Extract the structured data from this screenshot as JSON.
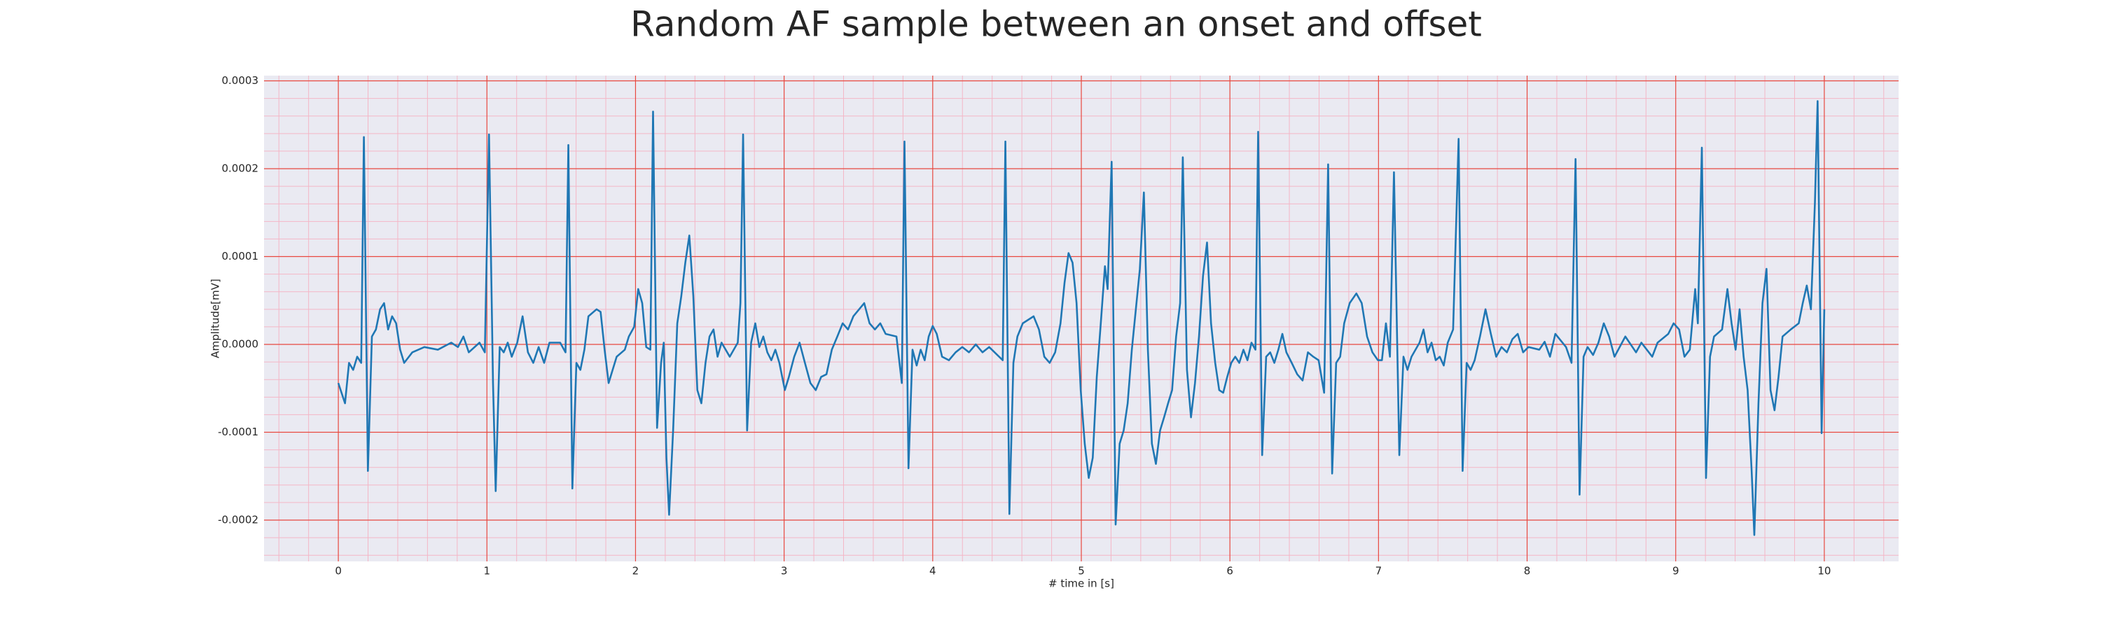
{
  "chart_data": {
    "type": "line",
    "title": "Random AF sample between an onset and offset",
    "xlabel": "# time in [s]",
    "ylabel": "Amplitude[mV]",
    "color": "#1f77b4",
    "grid": true,
    "minor_grid": true,
    "xlim": [
      -0.5,
      10.5
    ],
    "ylim": [
      -0.000247,
      0.000306
    ],
    "xticks": [
      0,
      1,
      2,
      3,
      4,
      5,
      6,
      7,
      8,
      9,
      10
    ],
    "yticks": [
      -0.0002,
      -0.0001,
      {
        "value": 0,
        "label": "0.0000"
      },
      0.0001,
      0.0002,
      0.0003
    ],
    "x": [
      0,
      0.045,
      0.072,
      0.1,
      0.127,
      0.154,
      0.172,
      0.199,
      0.226,
      0.253,
      0.281,
      0.308,
      0.335,
      0.362,
      0.389,
      0.416,
      0.443,
      0.498,
      0.579,
      0.67,
      0.76,
      0.805,
      0.842,
      0.878,
      0.95,
      0.986,
      1.014,
      1.041,
      1.059,
      1.086,
      1.113,
      1.14,
      1.167,
      1.204,
      1.24,
      1.276,
      1.312,
      1.348,
      1.385,
      1.421,
      1.493,
      1.529,
      1.548,
      1.575,
      1.602,
      1.629,
      1.656,
      1.683,
      1.738,
      1.765,
      1.792,
      1.819,
      1.846,
      1.873,
      1.928,
      1.955,
      1.991,
      2.018,
      2.045,
      2.072,
      2.1,
      2.118,
      2.145,
      2.172,
      2.19,
      2.208,
      2.226,
      2.253,
      2.281,
      2.308,
      2.335,
      2.362,
      2.389,
      2.416,
      2.443,
      2.471,
      2.498,
      2.525,
      2.552,
      2.579,
      2.634,
      2.688,
      2.706,
      2.724,
      2.751,
      2.778,
      2.806,
      2.833,
      2.86,
      2.887,
      2.914,
      2.941,
      2.968,
      3.005,
      3.032,
      3.068,
      3.104,
      3.14,
      3.177,
      3.213,
      3.249,
      3.285,
      3.321,
      3.358,
      3.394,
      3.43,
      3.466,
      3.539,
      3.575,
      3.611,
      3.647,
      3.683,
      3.756,
      3.792,
      3.81,
      3.837,
      3.864,
      3.892,
      3.919,
      3.946,
      3.973,
      4.0,
      4.027,
      4.063,
      4.109,
      4.154,
      4.199,
      4.244,
      4.29,
      4.335,
      4.38,
      4.471,
      4.489,
      4.516,
      4.543,
      4.57,
      4.606,
      4.679,
      4.715,
      4.751,
      4.787,
      4.824,
      4.86,
      4.887,
      4.914,
      4.941,
      4.968,
      4.996,
      5.023,
      5.05,
      5.077,
      5.104,
      5.131,
      5.159,
      5.177,
      5.204,
      5.231,
      5.258,
      5.285,
      5.312,
      5.34,
      5.367,
      5.394,
      5.421,
      5.448,
      5.475,
      5.502,
      5.53,
      5.557,
      5.584,
      5.611,
      5.638,
      5.665,
      5.683,
      5.711,
      5.738,
      5.765,
      5.792,
      5.819,
      5.846,
      5.873,
      5.901,
      5.928,
      5.955,
      5.982,
      6.009,
      6.036,
      6.063,
      6.091,
      6.118,
      6.145,
      6.172,
      6.19,
      6.217,
      6.244,
      6.271,
      6.299,
      6.326,
      6.353,
      6.38,
      6.416,
      6.453,
      6.489,
      6.525,
      6.561,
      6.597,
      6.634,
      6.661,
      6.688,
      6.715,
      6.742,
      6.769,
      6.806,
      6.851,
      6.887,
      6.923,
      6.959,
      6.996,
      7.023,
      7.05,
      7.077,
      7.104,
      7.14,
      7.168,
      7.195,
      7.222,
      7.276,
      7.303,
      7.33,
      7.357,
      7.385,
      7.412,
      7.439,
      7.466,
      7.502,
      7.539,
      7.566,
      7.593,
      7.62,
      7.647,
      7.683,
      7.72,
      7.756,
      7.792,
      7.828,
      7.864,
      7.901,
      7.937,
      7.973,
      8.009,
      8.082,
      8.118,
      8.154,
      8.19,
      8.262,
      8.299,
      8.326,
      8.353,
      8.38,
      8.407,
      8.444,
      8.48,
      8.516,
      8.552,
      8.588,
      8.661,
      8.733,
      8.769,
      8.842,
      8.878,
      8.95,
      8.986,
      9.023,
      9.059,
      9.095,
      9.131,
      9.149,
      9.176,
      9.204,
      9.231,
      9.258,
      9.312,
      9.348,
      9.376,
      9.403,
      9.43,
      9.457,
      9.484,
      9.511,
      9.529,
      9.557,
      9.584,
      9.611,
      9.638,
      9.665,
      9.692,
      9.719,
      9.774,
      9.828,
      9.855,
      9.882,
      9.91,
      9.937,
      9.955,
      9.982,
      10.0
    ],
    "values": [
      -4.4e-05,
      -6.7e-05,
      -2.1e-05,
      -2.9e-05,
      -1.4e-05,
      -2.1e-05,
      0.000236,
      -0.000144,
      9e-06,
      1.7e-05,
      4e-05,
      4.7e-05,
      1.7e-05,
      3.2e-05,
      2.4e-05,
      -6e-06,
      -2.1e-05,
      -9e-06,
      -3e-06,
      -6e-06,
      2e-06,
      -3e-06,
      9e-06,
      -9e-06,
      2e-06,
      -9e-06,
      0.000239,
      -4.4e-05,
      -0.000167,
      -3e-06,
      -9e-06,
      2e-06,
      -1.4e-05,
      2e-06,
      3.2e-05,
      -9e-06,
      -2.1e-05,
      -3e-06,
      -2.1e-05,
      2e-06,
      2e-06,
      -9e-06,
      0.000227,
      -0.000164,
      -2.1e-05,
      -2.9e-05,
      -6e-06,
      3.2e-05,
      4e-05,
      3.7e-05,
      -6e-06,
      -4.4e-05,
      -2.9e-05,
      -1.4e-05,
      -6e-06,
      9e-06,
      2e-05,
      6.3e-05,
      4.7e-05,
      -3e-06,
      -6e-06,
      0.000265,
      -9.5e-05,
      -2.1e-05,
      2e-06,
      -0.000129,
      -0.000194,
      -9.8e-05,
      2.4e-05,
      5.5e-05,
      9.3e-05,
      0.000124,
      5.5e-05,
      -5.2e-05,
      -6.7e-05,
      -2.1e-05,
      9e-06,
      1.7e-05,
      -1.4e-05,
      2e-06,
      -1.4e-05,
      2e-06,
      4.7e-05,
      0.000239,
      -9.8e-05,
      2e-06,
      2.4e-05,
      -3e-06,
      9e-06,
      -9e-06,
      -1.8e-05,
      -6e-06,
      -2.1e-05,
      -5.2e-05,
      -3.7e-05,
      -1.4e-05,
      2e-06,
      -2.1e-05,
      -4.4e-05,
      -5.2e-05,
      -3.7e-05,
      -3.4e-05,
      -6e-06,
      9e-06,
      2.4e-05,
      1.7e-05,
      3.2e-05,
      4.7e-05,
      2.4e-05,
      1.7e-05,
      2.4e-05,
      1.2e-05,
      9e-06,
      -4.4e-05,
      0.000231,
      -0.000141,
      -6e-06,
      -2.4e-05,
      -6e-06,
      -1.8e-05,
      9e-06,
      2.1e-05,
      1.2e-05,
      -1.4e-05,
      -1.8e-05,
      -9e-06,
      -3e-06,
      -9e-06,
      0,
      -9e-06,
      -3e-06,
      -1.8e-05,
      0.000231,
      -0.000193,
      -2.1e-05,
      9e-06,
      2.4e-05,
      3.2e-05,
      1.7e-05,
      -1.4e-05,
      -2.1e-05,
      -9e-06,
      2.4e-05,
      7e-05,
      0.000104,
      9.3e-05,
      4.7e-05,
      -5.2e-05,
      -0.000113,
      -0.000152,
      -0.000129,
      -3.7e-05,
      2.4e-05,
      8.9e-05,
      6.3e-05,
      0.000208,
      -0.000205,
      -0.000113,
      -9.8e-05,
      -6.7e-05,
      -6e-06,
      4e-05,
      8.6e-05,
      0.000173,
      -6e-06,
      -0.000113,
      -0.000136,
      -9.8e-05,
      -8.3e-05,
      -6.7e-05,
      -5.2e-05,
      9e-06,
      4.7e-05,
      0.000213,
      -2.9e-05,
      -8.3e-05,
      -4.4e-05,
      9e-06,
      7.8e-05,
      0.000116,
      2.4e-05,
      -2.1e-05,
      -5.2e-05,
      -5.5e-05,
      -3.7e-05,
      -2.1e-05,
      -1.4e-05,
      -2.1e-05,
      -6e-06,
      -1.8e-05,
      2e-06,
      -6e-06,
      0.000242,
      -0.000126,
      -1.4e-05,
      -9e-06,
      -2.1e-05,
      -6e-06,
      1.2e-05,
      -9e-06,
      -2.1e-05,
      -3.4e-05,
      -4.1e-05,
      -9e-06,
      -1.4e-05,
      -1.8e-05,
      -5.5e-05,
      0.000205,
      -0.000147,
      -2.1e-05,
      -1.4e-05,
      2.4e-05,
      4.7e-05,
      5.8e-05,
      4.7e-05,
      9e-06,
      -9e-06,
      -1.8e-05,
      -1.8e-05,
      2.4e-05,
      -1.4e-05,
      0.000196,
      -0.000126,
      -1.4e-05,
      -2.9e-05,
      -1.4e-05,
      2e-06,
      1.7e-05,
      -9e-06,
      2e-06,
      -1.8e-05,
      -1.4e-05,
      -2.4e-05,
      2e-06,
      1.7e-05,
      0.000234,
      -0.000144,
      -2.1e-05,
      -2.9e-05,
      -1.8e-05,
      9e-06,
      4e-05,
      1.2e-05,
      -1.4e-05,
      -3e-06,
      -9e-06,
      6e-06,
      1.2e-05,
      -9e-06,
      -3e-06,
      -6e-06,
      3e-06,
      -1.4e-05,
      1.2e-05,
      -3e-06,
      -2.1e-05,
      0.000211,
      -0.000171,
      -1.4e-05,
      -3e-06,
      -1.2e-05,
      2e-06,
      2.4e-05,
      9e-06,
      -1.4e-05,
      9e-06,
      -9e-06,
      2e-06,
      -1.4e-05,
      2e-06,
      1.2e-05,
      2.4e-05,
      1.7e-05,
      -1.4e-05,
      -6e-06,
      6.3e-05,
      2.4e-05,
      0.000224,
      -0.000152,
      -1.4e-05,
      9e-06,
      1.7e-05,
      6.3e-05,
      2.4e-05,
      -6e-06,
      4e-05,
      -1.4e-05,
      -5.2e-05,
      -0.000144,
      -0.000217,
      -6.7e-05,
      4.7e-05,
      8.6e-05,
      -5.2e-05,
      -7.5e-05,
      -3.7e-05,
      9e-06,
      1.7e-05,
      2.4e-05,
      4.7e-05,
      6.7e-05,
      4e-05,
      0.000162,
      0.000277,
      -0.000101,
      4e-05
    ]
  }
}
